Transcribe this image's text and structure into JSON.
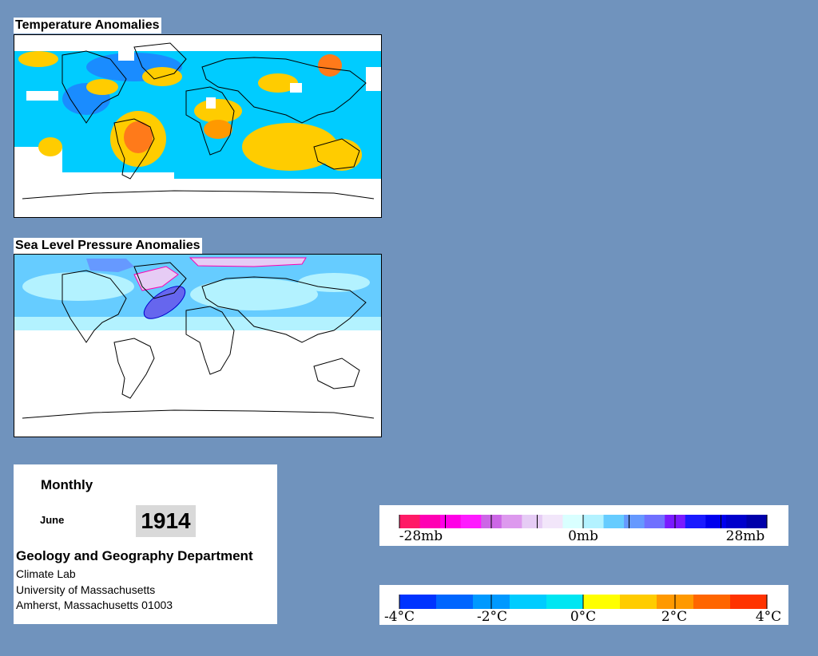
{
  "temperature_map": {
    "title": "Temperature Anomalies"
  },
  "pressure_map": {
    "title": "Sea Level Pressure Anomalies"
  },
  "info_panel": {
    "frequency": "Monthly",
    "month": "June",
    "year": "1914",
    "department": "Geology and Geography Department",
    "address_lines": [
      "Climate Lab",
      "University of Massachusetts",
      "Amherst, Massachusetts 01003"
    ]
  },
  "pressure_legend": {
    "ticks": [
      "-28mb",
      "0mb",
      "28mb"
    ],
    "colors": [
      "#ff1a66",
      "#ff00b3",
      "#ff00e6",
      "#ff1aff",
      "#cc66e6",
      "#dd99ee",
      "#e6ccf5",
      "#f2e6fa",
      "#d9ffff",
      "#b3f2ff",
      "#66ccff",
      "#6699ff",
      "#7070ff",
      "#7a1aff",
      "#1a1aff",
      "#0000ee",
      "#0000cc",
      "#0000aa"
    ]
  },
  "temperature_legend": {
    "ticks": [
      "-4°C",
      "-2°C",
      "0°C",
      "2°C",
      "4°C"
    ],
    "colors": [
      "#0033ff",
      "#0066ff",
      "#0099ff",
      "#00ccff",
      "#00e6f2",
      "#ffff00",
      "#ffcc00",
      "#ff9900",
      "#ff6600",
      "#ff3300"
    ]
  }
}
